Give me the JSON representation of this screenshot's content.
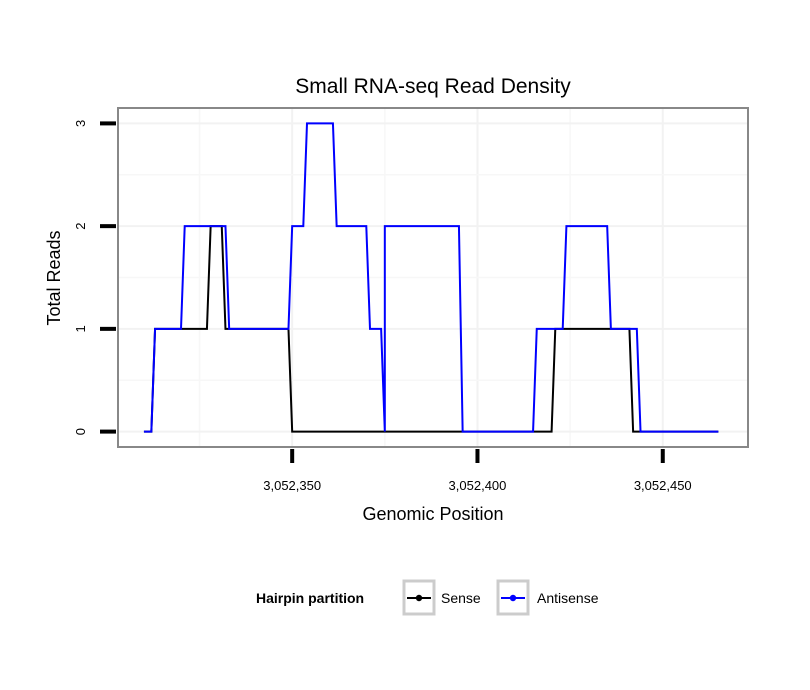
{
  "chart_data": {
    "type": "line",
    "title": "Small RNA-seq Read Density",
    "xlabel": "Genomic Position",
    "ylabel": "Total Reads",
    "xlim": [
      3052303,
      3052473
    ],
    "ylim": [
      -0.15,
      3.15
    ],
    "x_ticks": [
      3052350,
      3052400,
      3052450
    ],
    "x_tick_labels": [
      "3,052,350",
      "3,052,400",
      "3,052,450"
    ],
    "y_ticks": [
      0,
      1,
      2,
      3
    ],
    "y_tick_labels": [
      "0",
      "1",
      "2",
      "3"
    ],
    "legend": {
      "title": "Hairpin partition",
      "position": "bottom"
    },
    "series": [
      {
        "name": "Sense",
        "color": "#000000",
        "points": [
          [
            3052310,
            0
          ],
          [
            3052312,
            0
          ],
          [
            3052313,
            1
          ],
          [
            3052327,
            1
          ],
          [
            3052328,
            2
          ],
          [
            3052331,
            2
          ],
          [
            3052332,
            1
          ],
          [
            3052349,
            1
          ],
          [
            3052350,
            0
          ],
          [
            3052420,
            0
          ],
          [
            3052421,
            1
          ],
          [
            3052441,
            1
          ],
          [
            3052442,
            0
          ],
          [
            3052465,
            0
          ]
        ]
      },
      {
        "name": "Antisense",
        "color": "#0000ff",
        "points": [
          [
            3052310,
            0
          ],
          [
            3052312,
            0
          ],
          [
            3052313,
            1
          ],
          [
            3052320,
            1
          ],
          [
            3052321,
            2
          ],
          [
            3052332,
            2
          ],
          [
            3052333,
            1
          ],
          [
            3052349,
            1
          ],
          [
            3052350,
            2
          ],
          [
            3052353,
            2
          ],
          [
            3052354,
            3
          ],
          [
            3052361,
            3
          ],
          [
            3052362,
            2
          ],
          [
            3052370,
            2
          ],
          [
            3052371,
            1
          ],
          [
            3052374,
            1
          ],
          [
            3052375,
            0
          ],
          [
            3052375,
            2
          ],
          [
            3052395,
            2
          ],
          [
            3052396,
            0
          ],
          [
            3052415,
            0
          ],
          [
            3052416,
            1
          ],
          [
            3052423,
            1
          ],
          [
            3052424,
            2
          ],
          [
            3052435,
            2
          ],
          [
            3052436,
            1
          ],
          [
            3052443,
            1
          ],
          [
            3052444,
            0
          ],
          [
            3052465,
            0
          ]
        ]
      }
    ]
  }
}
